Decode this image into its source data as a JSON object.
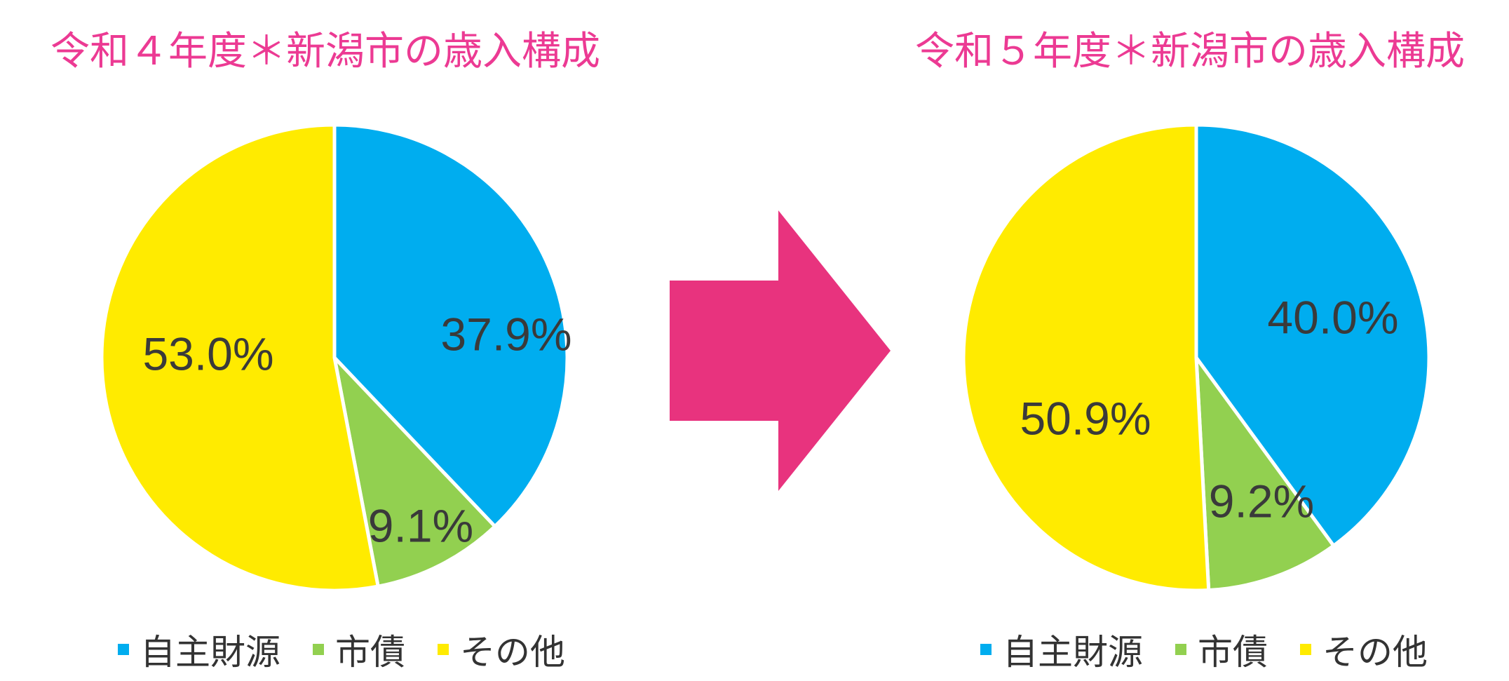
{
  "colors": {
    "title": "#ec3a93",
    "arrow": "#e8337e",
    "slice_colors": [
      "#00adef",
      "#92d050",
      "#ffeb00"
    ]
  },
  "chart_data": [
    {
      "type": "pie",
      "title": "令和４年度＊新潟市の歳入構成",
      "categories": [
        "自主財源",
        "市債",
        "その他"
      ],
      "values": [
        37.9,
        9.1,
        53.0
      ],
      "labels": [
        "37.9%",
        "9.1%",
        "53.0%"
      ],
      "legend_position": "bottom"
    },
    {
      "type": "pie",
      "title": "令和５年度＊新潟市の歳入構成",
      "categories": [
        "自主財源",
        "市債",
        "その他"
      ],
      "values": [
        40.0,
        9.2,
        50.9
      ],
      "labels": [
        "40.0%",
        "9.2%",
        "50.9%"
      ],
      "legend_position": "bottom"
    }
  ],
  "arrow_icon": "right-arrow-icon"
}
